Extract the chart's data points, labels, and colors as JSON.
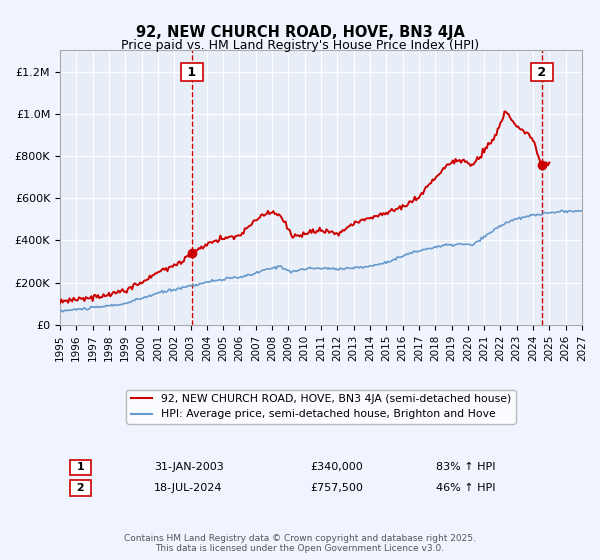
{
  "title": "92, NEW CHURCH ROAD, HOVE, BN3 4JA",
  "subtitle": "Price paid vs. HM Land Registry's House Price Index (HPI)",
  "legend_line1": "92, NEW CHURCH ROAD, HOVE, BN3 4JA (semi-detached house)",
  "legend_line2": "HPI: Average price, semi-detached house, Brighton and Hove",
  "annotation1_label": "1",
  "annotation1_date": "31-JAN-2003",
  "annotation1_price": "£340,000",
  "annotation1_hpi": "83% ↑ HPI",
  "annotation1_year": 2003.08,
  "annotation2_label": "2",
  "annotation2_date": "18-JUL-2024",
  "annotation2_price": "£757,500",
  "annotation2_hpi": "46% ↑ HPI",
  "annotation2_year": 2024.54,
  "footer": "Contains HM Land Registry data © Crown copyright and database right 2025.\nThis data is licensed under the Open Government Licence v3.0.",
  "ylim_max": 1300000,
  "bg_color": "#f0f4ff",
  "plot_bg_color": "#e8eef8",
  "grid_color": "#ffffff",
  "red_color": "#cc0000",
  "blue_color": "#6699cc",
  "dashed_color": "#cc0000"
}
